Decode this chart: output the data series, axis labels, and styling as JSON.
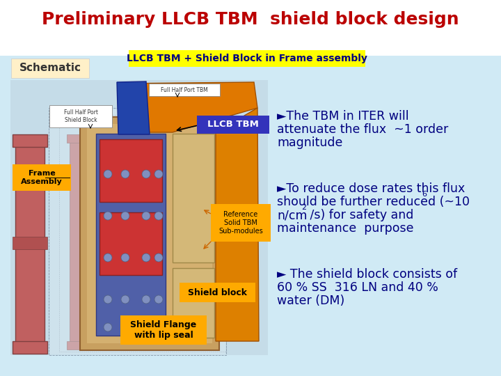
{
  "title": "Preliminary LLCB TBM  shield block design",
  "title_color": "#bb0000",
  "title_fontsize": 18,
  "bg_color_top": "#ffffff",
  "bg_color_bottom": "#d0eaf5",
  "header_banner_text": "LLCB TBM + Shield Block in Frame assembly",
  "header_banner_bg": "#ffff00",
  "header_banner_text_color": "#000080",
  "schematic_label": "Schematic",
  "schematic_bg": "#fff0c8",
  "frame_assembly_label": "Frame\nAssembly",
  "frame_assembly_bg": "#ffaa00",
  "llcb_tbm_label": "LLCB TBM",
  "llcb_tbm_bg": "#3333bb",
  "llcb_tbm_text_color": "#ffffff",
  "full_half_port_shield_label": "Full Half Port\nShield Block",
  "full_half_port_tbm_label": "Full Half Port TBM",
  "reference_solid_label": "Reference\nSolid TBM\nSub-modules",
  "reference_solid_bg": "#ffaa00",
  "shield_block_label": "Shield block",
  "shield_block_bg": "#ffaa00",
  "shield_flange_label": "Shield Flange\nwith lip seal",
  "shield_flange_bg": "#ffaa00",
  "bullet1_line1": "►The TBM in ITER will",
  "bullet1_line2": "attenuate the flux  ~1 order",
  "bullet1_line3": "magnitude",
  "bullet2_line1": "►To reduce dose rates this flux",
  "bullet2_line2": "should be further reduced (~10",
  "bullet2_sup": "6",
  "bullet2_line3": "n/cm",
  "bullet2_sup2": "2",
  "bullet2_line3b": " /s) for safety and",
  "bullet2_line4": "maintenance  purpose",
  "bullet3_line1": "► The shield block consists of",
  "bullet3_line2": "60 % SS  316 LN and 40 %",
  "bullet3_line3": "water (DM)",
  "text_color": "#000080",
  "text_fontsize": 12.5
}
